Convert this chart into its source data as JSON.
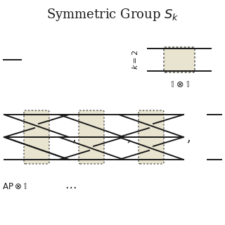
{
  "title": "Symmetric Group $S_k$",
  "title_fontsize": 13,
  "bg_color": "#ffffff",
  "tan_color": "#e8e4d0",
  "line_color": "#1a1a1a",
  "text_color": "#1a1a1a",
  "figsize": [
    3.2,
    3.2
  ],
  "dpi": 100,
  "lw": 1.4
}
